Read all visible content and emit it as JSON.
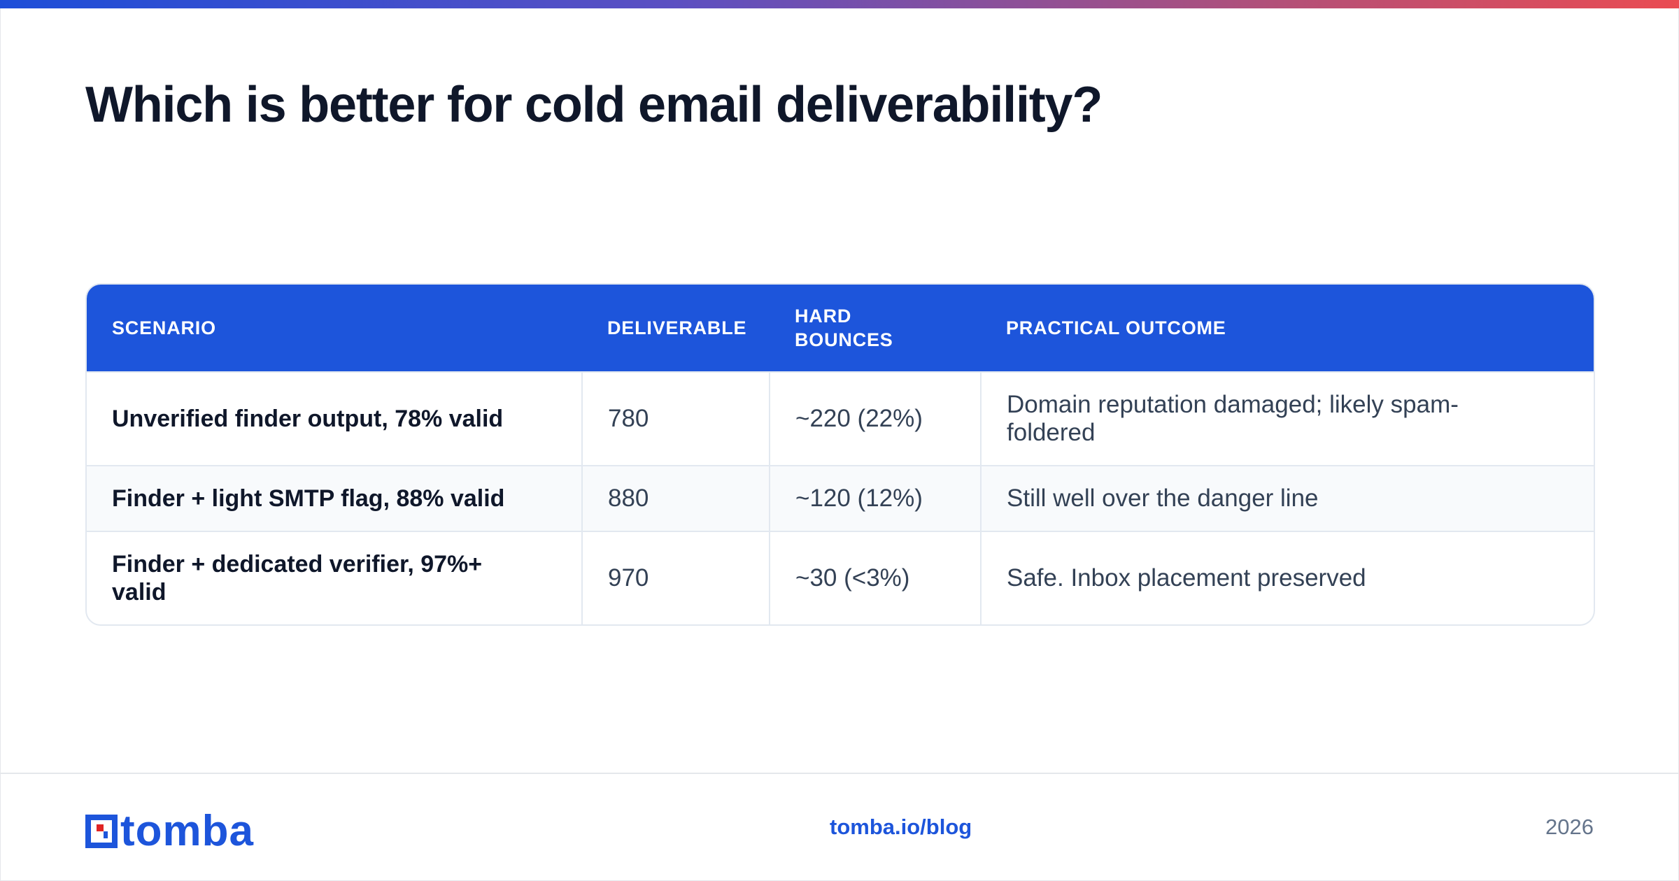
{
  "title": "Which is better for cold email deliverability?",
  "table": {
    "headers": [
      "SCENARIO",
      "DELIVERABLE",
      "HARD BOUNCES",
      "PRACTICAL OUTCOME"
    ],
    "rows": [
      {
        "scenario": "Unverified finder output, 78% valid",
        "deliverable": "780",
        "hard_bounces": "~220 (22%)",
        "outcome": "Domain reputation damaged; likely spam-foldered"
      },
      {
        "scenario": "Finder + light SMTP flag, 88% valid",
        "deliverable": "880",
        "hard_bounces": "~120 (12%)",
        "outcome": "Still well over the danger line"
      },
      {
        "scenario": "Finder + dedicated verifier, 97%+ valid",
        "deliverable": "970",
        "hard_bounces": "~30 (<3%)",
        "outcome": "Safe. Inbox placement preserved"
      }
    ]
  },
  "footer": {
    "brand": "tomba",
    "link": "tomba.io/blog",
    "year": "2026"
  },
  "colors": {
    "accent": "#1d55db",
    "logo_red": "#e02424",
    "title": "#0f172a"
  },
  "icons": [
    "tomba-logo-mark-icon"
  ]
}
